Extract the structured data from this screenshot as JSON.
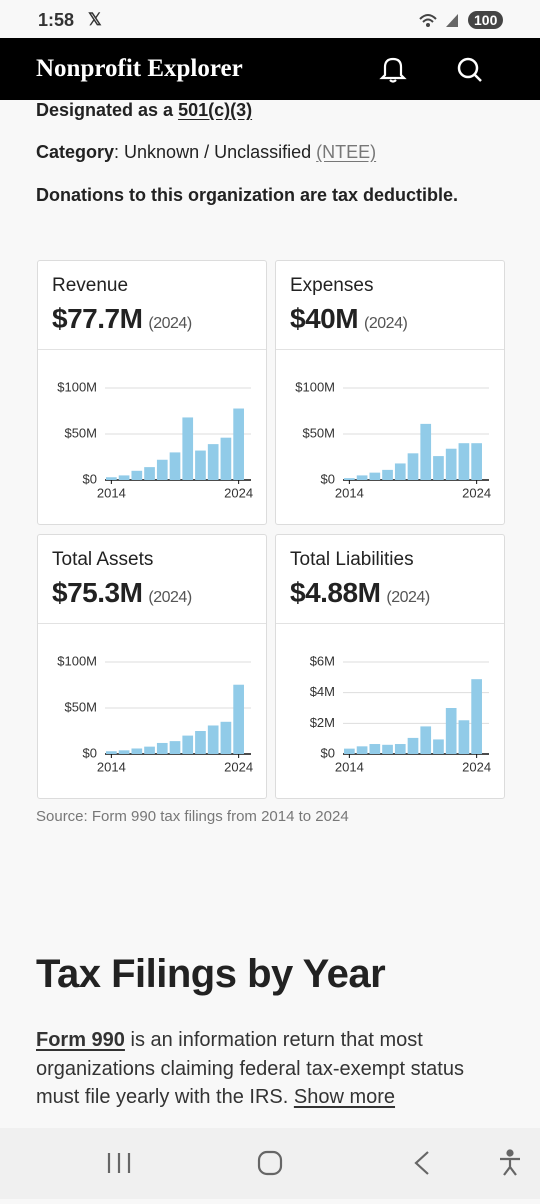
{
  "status_bar": {
    "time": "1:58",
    "battery": "100"
  },
  "header": {
    "title": "Nonprofit Explorer"
  },
  "info": {
    "designated_prefix": "Designated as a ",
    "designated_link": "501(c)(3)",
    "category_label": "Category",
    "category_value": ": Unknown / Unclassified ",
    "category_link": "(NTEE)",
    "deductible": "Donations to this organization are tax deductible."
  },
  "chart_data": [
    {
      "type": "bar",
      "title": "Revenue",
      "headline": "$77.7M",
      "period": "(2024)",
      "categories": [
        "2014",
        null,
        null,
        null,
        null,
        null,
        null,
        null,
        null,
        null,
        "2024"
      ],
      "series": [
        {
          "color": "#91cbe8",
          "values": [
            3000000,
            5000000,
            10000000,
            14000000,
            22000000,
            30000000,
            68000000,
            32000000,
            39000000,
            46000000,
            77700000
          ]
        }
      ],
      "ylim": [
        0,
        100000000
      ],
      "yticks": [
        {
          "value": 0,
          "label": "$0"
        },
        {
          "value": 50000000,
          "label": "$50M"
        },
        {
          "value": 100000000,
          "label": "$100M"
        }
      ],
      "grid": true
    },
    {
      "type": "bar",
      "title": "Expenses",
      "headline": "$40M",
      "period": "(2024)",
      "categories": [
        "2014",
        null,
        null,
        null,
        null,
        null,
        null,
        null,
        null,
        null,
        "2024"
      ],
      "series": [
        {
          "color": "#91cbe8",
          "values": [
            2000000,
            5000000,
            8000000,
            11000000,
            18000000,
            29000000,
            61000000,
            26000000,
            34000000,
            40000000,
            40000000
          ]
        }
      ],
      "ylim": [
        0,
        100000000
      ],
      "yticks": [
        {
          "value": 0,
          "label": "$0"
        },
        {
          "value": 50000000,
          "label": "$50M"
        },
        {
          "value": 100000000,
          "label": "$100M"
        }
      ],
      "grid": true
    },
    {
      "type": "bar",
      "title": "Total Assets",
      "headline": "$75.3M",
      "period": "(2024)",
      "categories": [
        "2014",
        null,
        null,
        null,
        null,
        null,
        null,
        null,
        null,
        null,
        "2024"
      ],
      "series": [
        {
          "color": "#91cbe8",
          "values": [
            3000000,
            4000000,
            6000000,
            8000000,
            12000000,
            14000000,
            20000000,
            25000000,
            31000000,
            35000000,
            75300000
          ]
        }
      ],
      "ylim": [
        0,
        100000000
      ],
      "yticks": [
        {
          "value": 0,
          "label": "$0"
        },
        {
          "value": 50000000,
          "label": "$50M"
        },
        {
          "value": 100000000,
          "label": "$100M"
        }
      ],
      "grid": true
    },
    {
      "type": "bar",
      "title": "Total Liabilities",
      "headline": "$4.88M",
      "period": "(2024)",
      "categories": [
        "2014",
        null,
        null,
        null,
        null,
        null,
        null,
        null,
        null,
        null,
        "2024"
      ],
      "series": [
        {
          "color": "#91cbe8",
          "values": [
            350000,
            500000,
            650000,
            600000,
            650000,
            1050000,
            1800000,
            950000,
            3000000,
            2200000,
            4880000
          ]
        }
      ],
      "ylim": [
        0,
        6000000
      ],
      "yticks": [
        {
          "value": 0,
          "label": "$0"
        },
        {
          "value": 2000000,
          "label": "$2M"
        },
        {
          "value": 4000000,
          "label": "$4M"
        },
        {
          "value": 6000000,
          "label": "$6M"
        }
      ],
      "grid": true
    }
  ],
  "source": "Source: Form 990 tax filings from 2014 to 2024",
  "filings": {
    "heading": "Tax Filings by Year",
    "form_link": "Form 990",
    "text": " is an information return that most organizations claiming federal tax-exempt status must file yearly with the IRS. ",
    "show_more": "Show more"
  }
}
